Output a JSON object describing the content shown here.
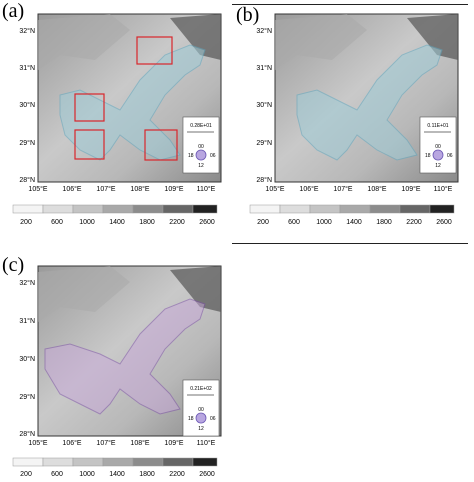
{
  "panels": [
    {
      "label": "(a)",
      "vector_label": "0.28E+01"
    },
    {
      "label": "(b)",
      "vector_label": "0.11E+01"
    },
    {
      "label": "(c)",
      "vector_label": "0.21E+02"
    }
  ],
  "lat_ticks": [
    "32°N",
    "31°N",
    "30°N",
    "29°N",
    "28°N"
  ],
  "lon_ticks": [
    "105°E",
    "106°E",
    "107°E",
    "108°E",
    "109°E",
    "110°E"
  ],
  "colorbar_ticks": [
    "200",
    "600",
    "1000",
    "1400",
    "1800",
    "2200",
    "2600"
  ],
  "clock_labels": {
    "top": "00",
    "right": "06",
    "bottom": "12",
    "left": "18"
  },
  "colors": {
    "box": "#d9262b",
    "vector_box": "#ffffff"
  }
}
